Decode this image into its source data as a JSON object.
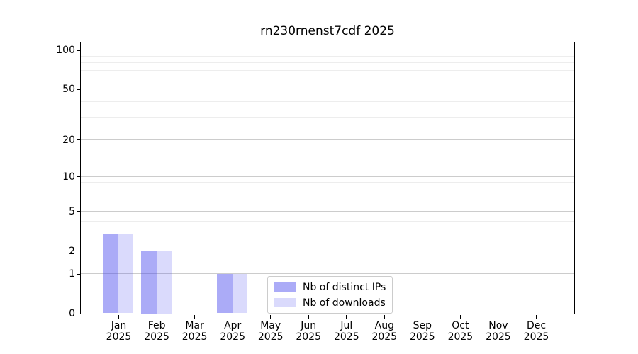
{
  "chart_data": {
    "type": "bar",
    "title": "rn230rnenst7cdf 2025",
    "categories": [
      "Jan",
      "Feb",
      "Mar",
      "Apr",
      "May",
      "Jun",
      "Jul",
      "Aug",
      "Sep",
      "Oct",
      "Nov",
      "Dec"
    ],
    "category_year": "2025",
    "series": [
      {
        "name": "Nb of distinct IPs",
        "color": "rgba(68,68,238,0.45)",
        "values": [
          3,
          2,
          0,
          1,
          0,
          0,
          0,
          0,
          0,
          0,
          0,
          0
        ]
      },
      {
        "name": "Nb of downloads",
        "color": "rgba(68,68,238,0.20)",
        "values": [
          3,
          2,
          0,
          1,
          0,
          0,
          0,
          0,
          0,
          0,
          0,
          0
        ]
      }
    ],
    "xlabel": "",
    "ylabel": "",
    "yscale": "log1p",
    "ylim": [
      0,
      115
    ],
    "yticks": [
      0,
      1,
      2,
      5,
      10,
      20,
      50,
      100
    ],
    "minor_yticks": [
      3,
      4,
      6,
      7,
      8,
      9,
      30,
      40,
      60,
      70,
      80,
      90
    ],
    "grid": {
      "axis": "y",
      "major_color": "#cccccc",
      "minor_color": "#ededed"
    },
    "legend": {
      "position": "lower center"
    },
    "colors": {
      "frame": "#000000",
      "background": "#ffffff"
    }
  }
}
